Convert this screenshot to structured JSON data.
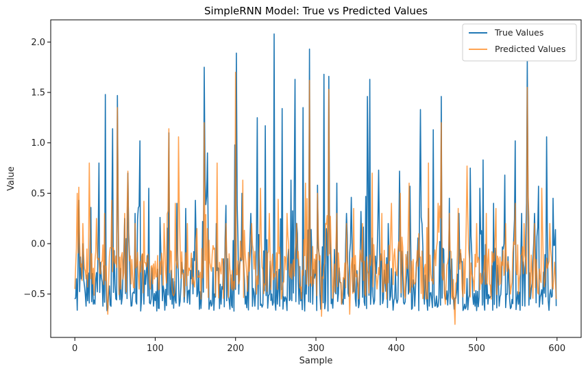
{
  "chart_data": {
    "type": "line",
    "title": "SimpleRNN Model: True vs Predicted Values",
    "xlabel": "Sample",
    "ylabel": "Value",
    "xlim": [
      -30,
      630
    ],
    "ylim": [
      -0.93,
      2.22
    ],
    "xticks": [
      0,
      100,
      200,
      300,
      400,
      500,
      600
    ],
    "yticks": [
      -0.5,
      0.0,
      0.5,
      1.0,
      1.5,
      2.0
    ],
    "ytick_labels": [
      "−0.5",
      "0.0",
      "0.5",
      "1.0",
      "1.5",
      "2.0"
    ],
    "legend_position": "top-right",
    "n_samples": 600,
    "series": [
      {
        "name": "True Values",
        "color": "#1f77b4",
        "alpha": 1.0,
        "key_points": [
          [
            0,
            -0.55
          ],
          [
            3,
            -0.66
          ],
          [
            5,
            0.43
          ],
          [
            8,
            -0.35
          ],
          [
            10,
            0.0
          ],
          [
            14,
            -0.62
          ],
          [
            20,
            0.36
          ],
          [
            25,
            -0.6
          ],
          [
            30,
            0.8
          ],
          [
            35,
            -0.62
          ],
          [
            38,
            1.48
          ],
          [
            42,
            -0.5
          ],
          [
            47,
            1.14
          ],
          [
            50,
            -0.4
          ],
          [
            53,
            1.47
          ],
          [
            58,
            -0.6
          ],
          [
            62,
            0.25
          ],
          [
            66,
            0.7
          ],
          [
            70,
            -0.62
          ],
          [
            75,
            0.3
          ],
          [
            81,
            1.02
          ],
          [
            86,
            -0.6
          ],
          [
            92,
            0.55
          ],
          [
            98,
            -0.62
          ],
          [
            106,
            0.26
          ],
          [
            112,
            -0.66
          ],
          [
            117,
            1.1
          ],
          [
            121,
            -0.6
          ],
          [
            127,
            0.4
          ],
          [
            130,
            -0.62
          ],
          [
            138,
            0.35
          ],
          [
            143,
            -0.6
          ],
          [
            150,
            0.43
          ],
          [
            155,
            -0.65
          ],
          [
            161,
            1.75
          ],
          [
            165,
            0.9
          ],
          [
            170,
            -0.62
          ],
          [
            176,
            0.2
          ],
          [
            182,
            -0.6
          ],
          [
            188,
            0.38
          ],
          [
            193,
            -0.65
          ],
          [
            199,
            0.98
          ],
          [
            201,
            1.89
          ],
          [
            204,
            -0.5
          ],
          [
            208,
            0.5
          ],
          [
            212,
            -0.6
          ],
          [
            219,
            0.3
          ],
          [
            224,
            -0.62
          ],
          [
            227,
            1.25
          ],
          [
            232,
            -0.6
          ],
          [
            237,
            1.17
          ],
          [
            242,
            -0.5
          ],
          [
            248,
            2.08
          ],
          [
            252,
            -0.6
          ],
          [
            258,
            1.34
          ],
          [
            263,
            -0.55
          ],
          [
            269,
            0.63
          ],
          [
            274,
            1.63
          ],
          [
            279,
            -0.6
          ],
          [
            284,
            1.35
          ],
          [
            288,
            -0.5
          ],
          [
            292,
            1.93
          ],
          [
            296,
            -0.6
          ],
          [
            302,
            0.58
          ],
          [
            306,
            -0.65
          ],
          [
            310,
            1.68
          ],
          [
            314,
            0.1
          ],
          [
            316,
            1.66
          ],
          [
            320,
            -0.55
          ],
          [
            326,
            0.6
          ],
          [
            332,
            -0.6
          ],
          [
            338,
            0.3
          ],
          [
            344,
            0.46
          ],
          [
            350,
            -0.62
          ],
          [
            356,
            0.32
          ],
          [
            364,
            1.46
          ],
          [
            367,
            1.63
          ],
          [
            372,
            -0.6
          ],
          [
            378,
            0.73
          ],
          [
            384,
            -0.55
          ],
          [
            390,
            0.2
          ],
          [
            396,
            -0.66
          ],
          [
            404,
            0.72
          ],
          [
            410,
            -0.6
          ],
          [
            417,
            0.57
          ],
          [
            423,
            -0.62
          ],
          [
            430,
            1.33
          ],
          [
            435,
            -0.6
          ],
          [
            440,
            0.35
          ],
          [
            446,
            1.13
          ],
          [
            452,
            -0.62
          ],
          [
            456,
            1.46
          ],
          [
            460,
            -0.5
          ],
          [
            466,
            0.45
          ],
          [
            472,
            -0.65
          ],
          [
            478,
            0.3
          ],
          [
            485,
            -0.6
          ],
          [
            492,
            0.75
          ],
          [
            498,
            -0.62
          ],
          [
            504,
            0.55
          ],
          [
            508,
            0.83
          ],
          [
            514,
            -0.6
          ],
          [
            521,
            0.4
          ],
          [
            528,
            -0.62
          ],
          [
            535,
            0.68
          ],
          [
            541,
            -0.55
          ],
          [
            548,
            1.02
          ],
          [
            552,
            -0.6
          ],
          [
            556,
            0.3
          ],
          [
            560,
            -0.62
          ],
          [
            563,
            1.82
          ],
          [
            567,
            -0.55
          ],
          [
            572,
            0.3
          ],
          [
            577,
            0.57
          ],
          [
            582,
            -0.6
          ],
          [
            587,
            1.06
          ],
          [
            591,
            -0.5
          ],
          [
            595,
            0.45
          ],
          [
            598,
            0.14
          ],
          [
            599,
            -0.62
          ]
        ]
      },
      {
        "name": "Predicted Values",
        "color": "#ff7f0e",
        "alpha": 0.72,
        "key_points": [
          [
            0,
            -0.45
          ],
          [
            3,
            0.5
          ],
          [
            5,
            0.56
          ],
          [
            8,
            -0.2
          ],
          [
            10,
            0.2
          ],
          [
            14,
            -0.35
          ],
          [
            18,
            0.8
          ],
          [
            22,
            -0.4
          ],
          [
            27,
            0.25
          ],
          [
            32,
            -0.3
          ],
          [
            37,
            0.3
          ],
          [
            41,
            -0.7
          ],
          [
            46,
            0.43
          ],
          [
            50,
            -0.2
          ],
          [
            53,
            1.35
          ],
          [
            57,
            -0.45
          ],
          [
            62,
            0.3
          ],
          [
            66,
            0.72
          ],
          [
            70,
            -0.4
          ],
          [
            75,
            0.2
          ],
          [
            80,
            -0.45
          ],
          [
            86,
            0.42
          ],
          [
            92,
            -0.3
          ],
          [
            98,
            -0.2
          ],
          [
            105,
            -0.45
          ],
          [
            111,
            0.2
          ],
          [
            117,
            1.14
          ],
          [
            121,
            -0.45
          ],
          [
            125,
            0.4
          ],
          [
            129,
            1.06
          ],
          [
            134,
            -0.3
          ],
          [
            140,
            0.2
          ],
          [
            146,
            -0.4
          ],
          [
            152,
            0.15
          ],
          [
            157,
            -0.55
          ],
          [
            161,
            1.2
          ],
          [
            165,
            0.15
          ],
          [
            171,
            -0.1
          ],
          [
            177,
            0.8
          ],
          [
            182,
            -0.3
          ],
          [
            188,
            0.2
          ],
          [
            195,
            -0.45
          ],
          [
            200,
            1.7
          ],
          [
            204,
            -0.4
          ],
          [
            209,
            0.63
          ],
          [
            214,
            -0.3
          ],
          [
            220,
            0.2
          ],
          [
            226,
            -0.5
          ],
          [
            231,
            0.55
          ],
          [
            236,
            -0.4
          ],
          [
            242,
            0.3
          ],
          [
            248,
            -0.3
          ],
          [
            253,
            0.44
          ],
          [
            258,
            -0.5
          ],
          [
            264,
            0.3
          ],
          [
            270,
            -0.35
          ],
          [
            276,
            0.2
          ],
          [
            282,
            -0.55
          ],
          [
            287,
            0.6
          ],
          [
            292,
            1.62
          ],
          [
            297,
            -0.4
          ],
          [
            302,
            0.5
          ],
          [
            307,
            -0.72
          ],
          [
            312,
            0.2
          ],
          [
            316,
            1.53
          ],
          [
            320,
            -0.3
          ],
          [
            326,
            0.3
          ],
          [
            332,
            -0.6
          ],
          [
            338,
            0.2
          ],
          [
            342,
            -0.7
          ],
          [
            347,
            0.35
          ],
          [
            352,
            -0.4
          ],
          [
            358,
            0.2
          ],
          [
            365,
            -0.3
          ],
          [
            370,
            0.7
          ],
          [
            376,
            -0.45
          ],
          [
            382,
            0.3
          ],
          [
            388,
            -0.55
          ],
          [
            394,
            0.4
          ],
          [
            400,
            -0.3
          ],
          [
            405,
            0.5
          ],
          [
            410,
            -0.5
          ],
          [
            416,
            0.6
          ],
          [
            422,
            -0.4
          ],
          [
            428,
            0.1
          ],
          [
            434,
            -0.5
          ],
          [
            440,
            0.8
          ],
          [
            446,
            -0.4
          ],
          [
            452,
            0.4
          ],
          [
            456,
            1.2
          ],
          [
            461,
            -0.6
          ],
          [
            466,
            0.3
          ],
          [
            470,
            -0.55
          ],
          [
            473,
            -0.8
          ],
          [
            477,
            0.35
          ],
          [
            482,
            -0.45
          ],
          [
            488,
            0.77
          ],
          [
            494,
            -0.3
          ],
          [
            500,
            0.2
          ],
          [
            506,
            -0.4
          ],
          [
            512,
            0.3
          ],
          [
            518,
            -0.55
          ],
          [
            524,
            0.35
          ],
          [
            530,
            -0.4
          ],
          [
            536,
            0.2
          ],
          [
            542,
            -0.5
          ],
          [
            548,
            0.4
          ],
          [
            554,
            -0.3
          ],
          [
            559,
            0.2
          ],
          [
            563,
            1.55
          ],
          [
            567,
            -0.4
          ],
          [
            572,
            0.2
          ],
          [
            577,
            -0.5
          ],
          [
            581,
            0.55
          ],
          [
            586,
            -0.3
          ],
          [
            591,
            0.2
          ],
          [
            595,
            -0.45
          ],
          [
            598,
            -0.35
          ],
          [
            599,
            -0.55
          ]
        ]
      }
    ]
  }
}
